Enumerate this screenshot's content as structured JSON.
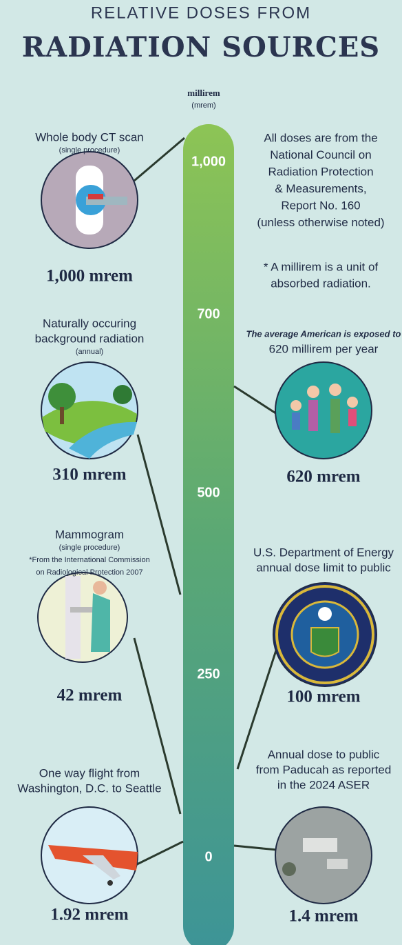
{
  "header": {
    "subtitle": "RELATIVE DOSES FROM",
    "title": "RADIATION SOURCES"
  },
  "scale": {
    "unit": "millirem",
    "unit_abbr": "(mrem)",
    "ticks": [
      "1,000",
      "700",
      "500",
      "250",
      "0"
    ]
  },
  "notes": {
    "source_lines": [
      "All doses are from the",
      "National Council on",
      "Radiation Protection",
      "& Measurements,",
      "Report No. 160",
      "(unless otherwise noted)"
    ],
    "definition_lines": [
      "* A millirem is a unit of",
      "absorbed radiation."
    ]
  },
  "sources": [
    {
      "label_lines": [
        "Whole body CT scan"
      ],
      "sub_lines": [
        "(single procedure)"
      ],
      "dose": "1,000 mrem"
    },
    {
      "label_lines": [
        "Naturally occuring",
        "background radiation"
      ],
      "sub_lines": [
        "(annual)"
      ],
      "dose": "310 mrem"
    },
    {
      "label_lines": [
        "Mammogram"
      ],
      "sub_lines": [
        "(single procedure)",
        "*From the International Commission",
        "on Radiological Protection 2007"
      ],
      "dose": "42 mrem"
    },
    {
      "label_lines": [
        "One way flight from",
        "Washington, D.C. to Seattle"
      ],
      "sub_lines": [],
      "dose": "1.92 mrem"
    },
    {
      "label_lines": [
        "The average American is exposed to",
        "620 millirem per year"
      ],
      "sub_lines": [],
      "dose": "620 mrem"
    },
    {
      "label_lines": [
        "U.S. Department of Energy",
        "annual dose limit to public"
      ],
      "sub_lines": [],
      "dose": "100 mrem"
    },
    {
      "label_lines": [
        "Annual dose to public",
        "from Paducah as reported",
        "in the 2024 ASER"
      ],
      "sub_lines": [],
      "dose": "1.4 mrem"
    }
  ]
}
